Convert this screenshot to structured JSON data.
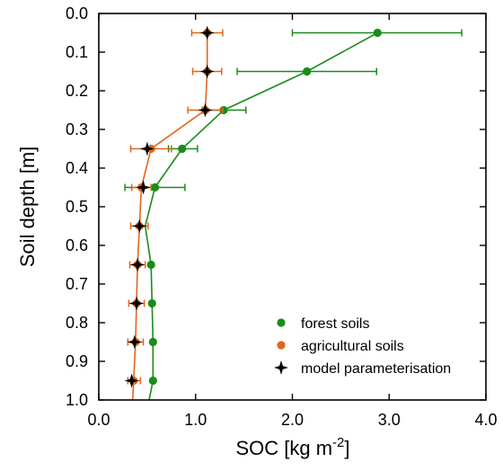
{
  "chart_data": {
    "type": "line",
    "title": "",
    "xlabel": "SOC [kg m",
    "xlabel_sup": "-2",
    "xlabel_end": "]",
    "ylabel": "Soil depth [m]",
    "xlim": [
      0.0,
      4.0
    ],
    "ylim": [
      0.0,
      1.0
    ],
    "y_inverted": true,
    "x_ticks": [
      "0.0",
      "1.0",
      "2.0",
      "3.0",
      "4.0"
    ],
    "y_ticks": [
      "0.0",
      "0.1",
      "0.2",
      "0.3",
      "0.4",
      "0.5",
      "0.6",
      "0.7",
      "0.8",
      "0.9",
      "1.0"
    ],
    "grid": false,
    "legend_position": "bottom-right",
    "colors": {
      "forest": "#1a8c1a",
      "agri": "#e0661c",
      "model": "#000000"
    },
    "series": [
      {
        "name": "forest soils",
        "marker": "circle",
        "points": [
          {
            "x": 2.88,
            "y": 0.05,
            "xerr_low": 2.0,
            "xerr_high": 3.75
          },
          {
            "x": 2.15,
            "y": 0.15,
            "xerr_low": 1.43,
            "xerr_high": 2.87
          },
          {
            "x": 1.29,
            "y": 0.25,
            "xerr_low": 1.07,
            "xerr_high": 1.52
          },
          {
            "x": 0.86,
            "y": 0.35,
            "xerr_low": 0.72,
            "xerr_high": 1.02
          },
          {
            "x": 0.58,
            "y": 0.45,
            "xerr_low": 0.27,
            "xerr_high": 0.89
          },
          {
            "x": 0.54,
            "y": 0.65
          },
          {
            "x": 0.55,
            "y": 0.75
          },
          {
            "x": 0.56,
            "y": 0.85
          },
          {
            "x": 0.56,
            "y": 0.95
          }
        ],
        "line": [
          [
            2.88,
            0.05
          ],
          [
            2.15,
            0.15
          ],
          [
            1.29,
            0.25
          ],
          [
            0.86,
            0.35
          ],
          [
            0.58,
            0.45
          ],
          [
            0.48,
            0.55
          ],
          [
            0.54,
            0.65
          ],
          [
            0.55,
            0.75
          ],
          [
            0.56,
            0.85
          ],
          [
            0.56,
            0.95
          ],
          [
            0.52,
            1.0
          ]
        ]
      },
      {
        "name": "agricultural soils",
        "marker": "circle",
        "points": [
          {
            "x": 1.12,
            "y": 0.05,
            "xerr_low": 0.96,
            "xerr_high": 1.28
          },
          {
            "x": 1.12,
            "y": 0.15,
            "xerr_low": 0.97,
            "xerr_high": 1.27
          },
          {
            "x": 1.1,
            "y": 0.25,
            "xerr_low": 0.92,
            "xerr_high": 1.28
          },
          {
            "x": 0.54,
            "y": 0.35,
            "xerr_low": 0.33,
            "xerr_high": 0.75
          },
          {
            "x": 0.44,
            "y": 0.45,
            "xerr_low": 0.34,
            "xerr_high": 0.54
          },
          {
            "x": 0.42,
            "y": 0.55,
            "xerr_low": 0.33,
            "xerr_high": 0.51
          },
          {
            "x": 0.4,
            "y": 0.65,
            "xerr_low": 0.32,
            "xerr_high": 0.48
          },
          {
            "x": 0.39,
            "y": 0.75,
            "xerr_low": 0.31,
            "xerr_high": 0.47
          },
          {
            "x": 0.38,
            "y": 0.85,
            "xerr_low": 0.3,
            "xerr_high": 0.46
          },
          {
            "x": 0.36,
            "y": 0.95,
            "xerr_low": 0.3,
            "xerr_high": 0.43
          }
        ],
        "line": [
          [
            1.12,
            0.05
          ],
          [
            1.12,
            0.15
          ],
          [
            1.1,
            0.25
          ],
          [
            0.54,
            0.35
          ],
          [
            0.44,
            0.45
          ],
          [
            0.42,
            0.55
          ],
          [
            0.4,
            0.65
          ],
          [
            0.39,
            0.75
          ],
          [
            0.38,
            0.85
          ],
          [
            0.36,
            0.95
          ],
          [
            0.35,
            1.0
          ]
        ]
      },
      {
        "name": "model parameterisation",
        "marker": "star4",
        "points": [
          {
            "x": 1.12,
            "y": 0.05
          },
          {
            "x": 1.12,
            "y": 0.15
          },
          {
            "x": 1.1,
            "y": 0.25
          },
          {
            "x": 0.5,
            "y": 0.35
          },
          {
            "x": 0.46,
            "y": 0.45
          },
          {
            "x": 0.42,
            "y": 0.55
          },
          {
            "x": 0.4,
            "y": 0.65
          },
          {
            "x": 0.39,
            "y": 0.75
          },
          {
            "x": 0.37,
            "y": 0.85
          },
          {
            "x": 0.34,
            "y": 0.95
          }
        ]
      }
    ]
  }
}
